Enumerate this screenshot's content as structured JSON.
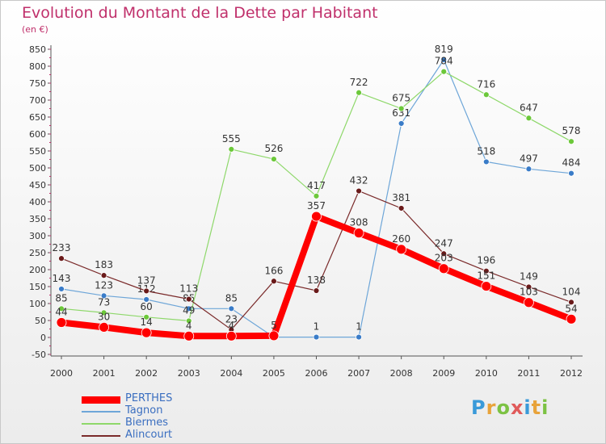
{
  "header": {
    "title": "Evolution du Montant de la Dette par Habitant",
    "subtitle": "(en €)"
  },
  "logo": {
    "letters": [
      "P",
      "r",
      "o",
      "x",
      "i",
      "t",
      "i"
    ],
    "colors": [
      "#3a9ad9",
      "#e8a33a",
      "#7cc243",
      "#e05a5a",
      "#3a9ad9",
      "#e8a33a",
      "#7cc243"
    ]
  },
  "chart_data": {
    "type": "line",
    "title": "Evolution du Montant de la Dette par Habitant",
    "subtitle": "(en €)",
    "xlabel": "",
    "ylabel": "",
    "x": [
      "2000",
      "2001",
      "2002",
      "2003",
      "2004",
      "2005",
      "2006",
      "2007",
      "2008",
      "2009",
      "2010",
      "2011",
      "2012"
    ],
    "ylim": [
      -50,
      850
    ],
    "yticks": [
      -50,
      0,
      50,
      100,
      150,
      200,
      250,
      300,
      350,
      400,
      450,
      500,
      550,
      600,
      650,
      700,
      750,
      800,
      850
    ],
    "grid": false,
    "legend": "bottom-left",
    "series": [
      {
        "name": "Tagnon",
        "color": "#6ea6d8",
        "marker": "#3a7cc8",
        "values": [
          143,
          123,
          112,
          85,
          85,
          1,
          1,
          1,
          631,
          819,
          518,
          497,
          484
        ],
        "labels": [
          "143",
          "123",
          "112",
          "85",
          "85",
          "",
          "1",
          "1",
          "631",
          "819",
          "518",
          "497",
          "484"
        ]
      },
      {
        "name": "Biermes",
        "color": "#8ed86a",
        "marker": "#6cc83a",
        "values": [
          85,
          73,
          60,
          49,
          null,
          null,
          417,
          722,
          675,
          784,
          716,
          647,
          578
        ],
        "labels": [
          "85",
          "73",
          "60",
          "49",
          "555",
          "526",
          "417",
          "722",
          "675",
          "784",
          "716",
          "647",
          "578"
        ],
        "values_full": [
          85,
          73,
          60,
          49,
          555,
          526,
          417,
          722,
          675,
          784,
          716,
          647,
          578
        ]
      },
      {
        "name": "Alincourt",
        "color": "#7a2a2a",
        "marker": "#6a1a1a",
        "values": [
          233,
          183,
          137,
          113,
          23,
          166,
          138,
          432,
          381,
          247,
          196,
          149,
          104
        ],
        "labels": [
          "233",
          "183",
          "137",
          "113",
          "23",
          "166",
          "138",
          "432",
          "381",
          "247",
          "196",
          "149",
          "104"
        ]
      },
      {
        "name": "PERTHES",
        "color": "#ff0000",
        "marker": "#ff0000",
        "values": [
          44,
          30,
          14,
          4,
          4,
          5,
          357,
          308,
          260,
          203,
          151,
          103,
          54
        ],
        "labels": [
          "44",
          "30",
          "14",
          "4",
          "4",
          "5",
          "357",
          "308",
          "260",
          "203",
          "151",
          "103",
          "54"
        ]
      }
    ]
  },
  "legend": {
    "items": [
      {
        "name": "PERTHES",
        "color": "#ff0000",
        "thickness": 9
      },
      {
        "name": "Tagnon",
        "color": "#6ea6d8",
        "thickness": 2
      },
      {
        "name": "Biermes",
        "color": "#8ed86a",
        "thickness": 2
      },
      {
        "name": "Alincourt",
        "color": "#7a2a2a",
        "thickness": 2
      }
    ]
  }
}
